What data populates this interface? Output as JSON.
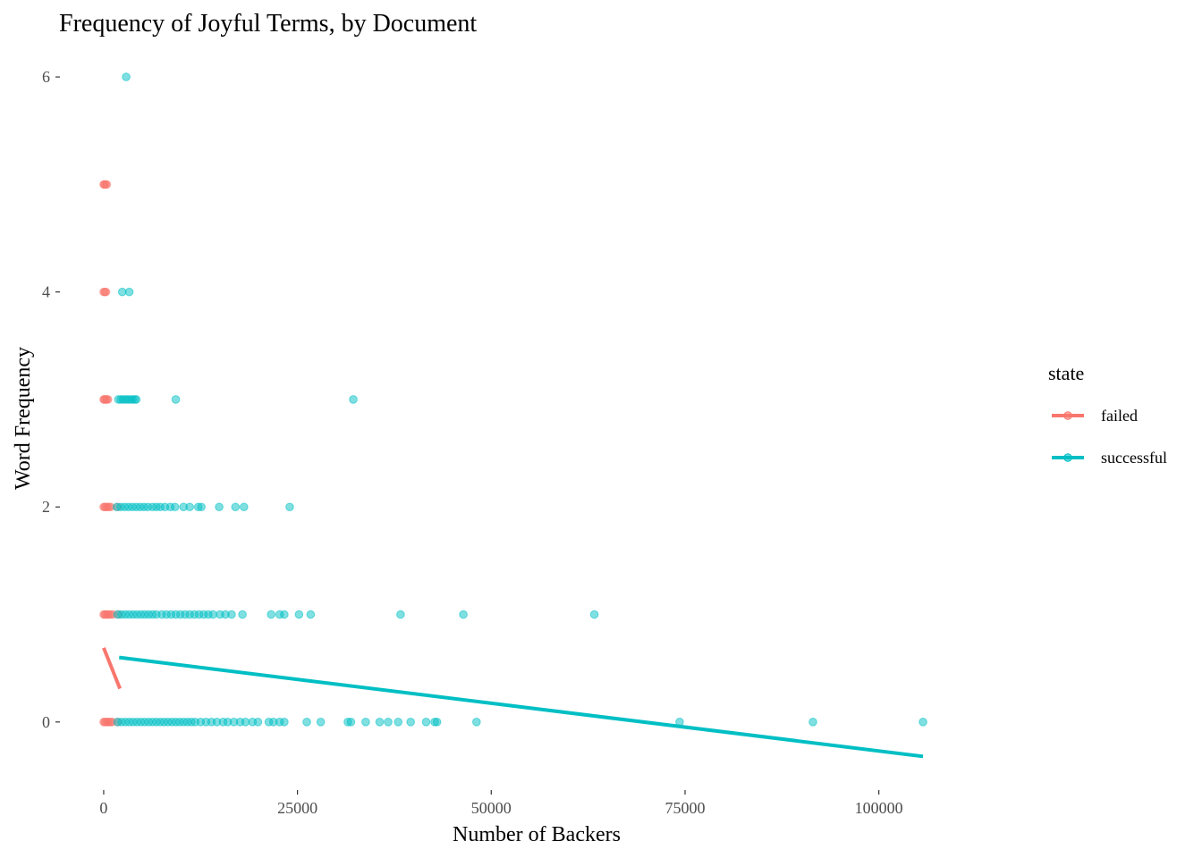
{
  "chart_data": {
    "type": "scatter",
    "title": "Frequency of Joyful Terms, by Document",
    "xlabel": "Number of Backers",
    "ylabel": "Word Frequency",
    "xlim": [
      -5300,
      117000
    ],
    "ylim": [
      -0.6,
      6.3
    ],
    "x_ticks": [
      0,
      25000,
      50000,
      75000,
      100000
    ],
    "x_tick_labels": [
      "0",
      "25000",
      "50000",
      "75000",
      "100000"
    ],
    "y_ticks": [
      0,
      2,
      4,
      6
    ],
    "y_tick_labels": [
      "0",
      "2",
      "4",
      "6"
    ],
    "grid": false,
    "legend": {
      "title": "state",
      "position": "right",
      "entries": [
        "failed",
        "successful"
      ]
    },
    "series": [
      {
        "name": "failed",
        "color": "#F8766D",
        "points": [
          {
            "x": 0,
            "y": 5
          },
          {
            "x": 100,
            "y": 5
          },
          {
            "x": 250,
            "y": 5
          },
          {
            "x": 400,
            "y": 5
          },
          {
            "x": 0,
            "y": 4
          },
          {
            "x": 150,
            "y": 4
          },
          {
            "x": 300,
            "y": 4
          },
          {
            "x": 0,
            "y": 3
          },
          {
            "x": 100,
            "y": 3
          },
          {
            "x": 250,
            "y": 3
          },
          {
            "x": 400,
            "y": 3
          },
          {
            "x": 550,
            "y": 3
          },
          {
            "x": 0,
            "y": 2
          },
          {
            "x": 150,
            "y": 2
          },
          {
            "x": 300,
            "y": 2
          },
          {
            "x": 500,
            "y": 2
          },
          {
            "x": 700,
            "y": 2
          },
          {
            "x": 900,
            "y": 2
          },
          {
            "x": 1800,
            "y": 2
          },
          {
            "x": 0,
            "y": 1
          },
          {
            "x": 150,
            "y": 1
          },
          {
            "x": 300,
            "y": 1
          },
          {
            "x": 500,
            "y": 1
          },
          {
            "x": 700,
            "y": 1
          },
          {
            "x": 900,
            "y": 1
          },
          {
            "x": 1200,
            "y": 1
          },
          {
            "x": 1900,
            "y": 1
          },
          {
            "x": 0,
            "y": 0
          },
          {
            "x": 150,
            "y": 0
          },
          {
            "x": 300,
            "y": 0
          },
          {
            "x": 500,
            "y": 0
          },
          {
            "x": 700,
            "y": 0
          },
          {
            "x": 900,
            "y": 0
          },
          {
            "x": 1100,
            "y": 0
          },
          {
            "x": 1800,
            "y": 0
          }
        ],
        "trend": {
          "x": [
            0,
            2100
          ],
          "y": [
            0.69,
            0.31
          ]
        }
      },
      {
        "name": "successful",
        "color": "#00BFC4",
        "points": [
          {
            "x": 2900,
            "y": 6
          },
          {
            "x": 2400,
            "y": 4
          },
          {
            "x": 3300,
            "y": 4
          },
          {
            "x": 1900,
            "y": 3
          },
          {
            "x": 2200,
            "y": 3
          },
          {
            "x": 2500,
            "y": 3
          },
          {
            "x": 2800,
            "y": 3
          },
          {
            "x": 3100,
            "y": 3
          },
          {
            "x": 3400,
            "y": 3
          },
          {
            "x": 3700,
            "y": 3
          },
          {
            "x": 4000,
            "y": 3
          },
          {
            "x": 4200,
            "y": 3
          },
          {
            "x": 9300,
            "y": 3
          },
          {
            "x": 32200,
            "y": 3
          },
          {
            "x": 1700,
            "y": 2
          },
          {
            "x": 2200,
            "y": 2
          },
          {
            "x": 2700,
            "y": 2
          },
          {
            "x": 3200,
            "y": 2
          },
          {
            "x": 3700,
            "y": 2
          },
          {
            "x": 4200,
            "y": 2
          },
          {
            "x": 4700,
            "y": 2
          },
          {
            "x": 5200,
            "y": 2
          },
          {
            "x": 5700,
            "y": 2
          },
          {
            "x": 6300,
            "y": 2
          },
          {
            "x": 6800,
            "y": 2
          },
          {
            "x": 7300,
            "y": 2
          },
          {
            "x": 7900,
            "y": 2
          },
          {
            "x": 8600,
            "y": 2
          },
          {
            "x": 9200,
            "y": 2
          },
          {
            "x": 10300,
            "y": 2
          },
          {
            "x": 11100,
            "y": 2
          },
          {
            "x": 12200,
            "y": 2
          },
          {
            "x": 12600,
            "y": 2
          },
          {
            "x": 14900,
            "y": 2
          },
          {
            "x": 17000,
            "y": 2
          },
          {
            "x": 18100,
            "y": 2
          },
          {
            "x": 24000,
            "y": 2
          },
          {
            "x": 1800,
            "y": 1
          },
          {
            "x": 2300,
            "y": 1
          },
          {
            "x": 2800,
            "y": 1
          },
          {
            "x": 3300,
            "y": 1
          },
          {
            "x": 3800,
            "y": 1
          },
          {
            "x": 4300,
            "y": 1
          },
          {
            "x": 4800,
            "y": 1
          },
          {
            "x": 5300,
            "y": 1
          },
          {
            "x": 5800,
            "y": 1
          },
          {
            "x": 6300,
            "y": 1
          },
          {
            "x": 6800,
            "y": 1
          },
          {
            "x": 7500,
            "y": 1
          },
          {
            "x": 8100,
            "y": 1
          },
          {
            "x": 8700,
            "y": 1
          },
          {
            "x": 9300,
            "y": 1
          },
          {
            "x": 9900,
            "y": 1
          },
          {
            "x": 10500,
            "y": 1
          },
          {
            "x": 11100,
            "y": 1
          },
          {
            "x": 11700,
            "y": 1
          },
          {
            "x": 12300,
            "y": 1
          },
          {
            "x": 12900,
            "y": 1
          },
          {
            "x": 13500,
            "y": 1
          },
          {
            "x": 14100,
            "y": 1
          },
          {
            "x": 15000,
            "y": 1
          },
          {
            "x": 15700,
            "y": 1
          },
          {
            "x": 16500,
            "y": 1
          },
          {
            "x": 17900,
            "y": 1
          },
          {
            "x": 21600,
            "y": 1
          },
          {
            "x": 22700,
            "y": 1
          },
          {
            "x": 23300,
            "y": 1
          },
          {
            "x": 25200,
            "y": 1
          },
          {
            "x": 26700,
            "y": 1
          },
          {
            "x": 38300,
            "y": 1
          },
          {
            "x": 46400,
            "y": 1
          },
          {
            "x": 63300,
            "y": 1
          },
          {
            "x": 1800,
            "y": 0
          },
          {
            "x": 2300,
            "y": 0
          },
          {
            "x": 2800,
            "y": 0
          },
          {
            "x": 3300,
            "y": 0
          },
          {
            "x": 3800,
            "y": 0
          },
          {
            "x": 4300,
            "y": 0
          },
          {
            "x": 4800,
            "y": 0
          },
          {
            "x": 5300,
            "y": 0
          },
          {
            "x": 5800,
            "y": 0
          },
          {
            "x": 6300,
            "y": 0
          },
          {
            "x": 6800,
            "y": 0
          },
          {
            "x": 7300,
            "y": 0
          },
          {
            "x": 7800,
            "y": 0
          },
          {
            "x": 8300,
            "y": 0
          },
          {
            "x": 8800,
            "y": 0
          },
          {
            "x": 9300,
            "y": 0
          },
          {
            "x": 9800,
            "y": 0
          },
          {
            "x": 10300,
            "y": 0
          },
          {
            "x": 10800,
            "y": 0
          },
          {
            "x": 11300,
            "y": 0
          },
          {
            "x": 11800,
            "y": 0
          },
          {
            "x": 12500,
            "y": 0
          },
          {
            "x": 13200,
            "y": 0
          },
          {
            "x": 13900,
            "y": 0
          },
          {
            "x": 14600,
            "y": 0
          },
          {
            "x": 15400,
            "y": 0
          },
          {
            "x": 16000,
            "y": 0
          },
          {
            "x": 16800,
            "y": 0
          },
          {
            "x": 17600,
            "y": 0
          },
          {
            "x": 18300,
            "y": 0
          },
          {
            "x": 19200,
            "y": 0
          },
          {
            "x": 19900,
            "y": 0
          },
          {
            "x": 21300,
            "y": 0
          },
          {
            "x": 21900,
            "y": 0
          },
          {
            "x": 22700,
            "y": 0
          },
          {
            "x": 23300,
            "y": 0
          },
          {
            "x": 26200,
            "y": 0
          },
          {
            "x": 28000,
            "y": 0
          },
          {
            "x": 31500,
            "y": 0
          },
          {
            "x": 31900,
            "y": 0
          },
          {
            "x": 33800,
            "y": 0
          },
          {
            "x": 35600,
            "y": 0
          },
          {
            "x": 36700,
            "y": 0
          },
          {
            "x": 38000,
            "y": 0
          },
          {
            "x": 39600,
            "y": 0
          },
          {
            "x": 41600,
            "y": 0
          },
          {
            "x": 42700,
            "y": 0
          },
          {
            "x": 43000,
            "y": 0
          },
          {
            "x": 48100,
            "y": 0
          },
          {
            "x": 74300,
            "y": 0
          },
          {
            "x": 91500,
            "y": 0
          },
          {
            "x": 105700,
            "y": 0
          }
        ],
        "trend": {
          "x": [
            2000,
            105700
          ],
          "y": [
            0.6,
            -0.32
          ]
        }
      }
    ]
  }
}
